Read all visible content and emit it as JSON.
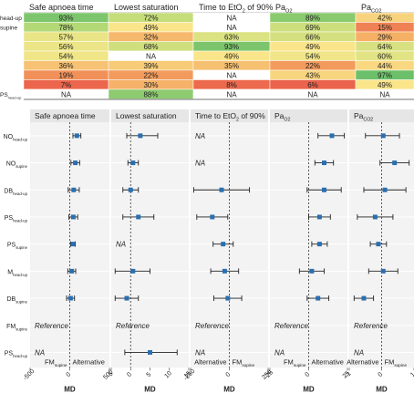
{
  "heatmap": {
    "type": "heatmap",
    "columns": [
      {
        "label": "Safe apnoea time"
      },
      {
        "label": "Lowest saturation"
      },
      {
        "label": "Time to EtO",
        "sub": "2",
        "suffix": " of 90%"
      },
      {
        "label": "Pa",
        "sub": "O2"
      },
      {
        "label": "Pa",
        "sub": "CO2"
      }
    ],
    "rows": [
      {
        "label": "head-up",
        "values": [
          "93%",
          "72%",
          "NA",
          "89%",
          "42%"
        ]
      },
      {
        "label": "supine",
        "values": [
          "78%",
          "49%",
          "NA",
          "69%",
          "15%"
        ]
      },
      {
        "label": "",
        "values": [
          "57%",
          "32%",
          "63%",
          "66%",
          "29%"
        ]
      },
      {
        "label": "",
        "values": [
          "56%",
          "68%",
          "93%",
          "49%",
          "64%"
        ]
      },
      {
        "label": "",
        "values": [
          "54%",
          "NA",
          "49%",
          "54%",
          "60%"
        ]
      },
      {
        "label": "",
        "values": [
          "36%",
          "39%",
          "35%",
          "22%",
          "44%"
        ]
      },
      {
        "label": "",
        "values": [
          "19%",
          "22%",
          "NA",
          "43%",
          "97%"
        ]
      },
      {
        "label": "",
        "values": [
          "7%",
          "30%",
          "8%",
          "6%",
          "49%"
        ]
      },
      {
        "label": "PS",
        "sub": "head-up",
        "values": [
          "NA",
          "88%",
          "NA",
          "NA",
          "NA"
        ]
      }
    ]
  },
  "chart_data": {
    "type": "scatter",
    "description": "forest plot of mean differences",
    "panels": [
      {
        "title": "Safe apnoea time",
        "title_sub": "",
        "title_suffix": "",
        "xlim": [
          -500,
          500
        ],
        "ticks": [
          -500,
          0,
          500
        ],
        "left_label": "FM",
        "left_sub": "supine",
        "right_label": "Alternative",
        "right_sub": ""
      },
      {
        "title": "Lowest saturation",
        "title_sub": "",
        "title_suffix": "",
        "xlim": [
          -5,
          15
        ],
        "ticks": [
          -5,
          0,
          5,
          10,
          15
        ],
        "left_label": "",
        "left_sub": "",
        "right_label": "",
        "right_sub": ""
      },
      {
        "title": "Time to EtO",
        "title_sub": "2",
        "title_suffix": " of 90%",
        "xlim": [
          -250,
          250
        ],
        "ticks": [
          -250,
          0,
          250
        ],
        "left_label": "Alternative",
        "left_sub": "",
        "right_label": "FM",
        "right_sub": "supine"
      },
      {
        "title": "Pa",
        "title_sub": "O2",
        "title_suffix": "",
        "xlim": [
          -25,
          25
        ],
        "ticks": [
          -25,
          0,
          25
        ],
        "left_label": "FM",
        "left_sub": "supine",
        "right_label": "Alternative",
        "right_sub": ""
      },
      {
        "title": "Pa",
        "title_sub": "CO2",
        "title_suffix": "",
        "xlim": [
          -1,
          1
        ],
        "ticks": [
          -1,
          0,
          1
        ],
        "left_label": "Alternative",
        "left_sub": "",
        "right_label": "FM",
        "right_sub": "supine"
      }
    ],
    "rows": [
      {
        "label": "NO",
        "sub": "head-up",
        "cells": [
          {
            "est": 90,
            "lo": 40,
            "hi": 140
          },
          {
            "est": 2.5,
            "lo": -1,
            "hi": 7
          },
          "NA",
          {
            "est": 15,
            "lo": 6,
            "hi": 23
          },
          {
            "est": 0.05,
            "lo": -0.5,
            "hi": 0.55
          }
        ]
      },
      {
        "label": "NO",
        "sub": "supine",
        "cells": [
          {
            "est": 70,
            "lo": 15,
            "hi": 125
          },
          {
            "est": 0.6,
            "lo": -0.7,
            "hi": 2
          },
          "NA",
          {
            "est": 10,
            "lo": 4,
            "hi": 16
          },
          {
            "est": 0.4,
            "lo": -0.05,
            "hi": 0.85
          }
        ]
      },
      {
        "label": "DB",
        "sub": "head-up",
        "cells": [
          {
            "est": 50,
            "lo": -20,
            "hi": 120
          },
          {
            "est": 0,
            "lo": -2,
            "hi": 2
          },
          {
            "est": -50,
            "lo": -230,
            "hi": 130
          },
          {
            "est": 10,
            "lo": -1,
            "hi": 21
          },
          {
            "est": 0.1,
            "lo": -0.55,
            "hi": 0.75
          }
        ]
      },
      {
        "label": "PS",
        "sub": "head-up",
        "cells": [
          {
            "est": 45,
            "lo": -10,
            "hi": 100
          },
          {
            "est": 2,
            "lo": -2,
            "hi": 6
          },
          {
            "est": -110,
            "lo": -210,
            "hi": -10
          },
          {
            "est": 7,
            "lo": 0,
            "hi": 14
          },
          {
            "est": -0.2,
            "lo": -0.75,
            "hi": 0.35
          }
        ]
      },
      {
        "label": "PS",
        "sub": "supine",
        "cells": [
          {
            "est": 40,
            "lo": 10,
            "hi": 70
          },
          "NA",
          {
            "est": -40,
            "lo": -105,
            "hi": 25
          },
          {
            "est": 7,
            "lo": 2,
            "hi": 12
          },
          {
            "est": -0.1,
            "lo": -0.35,
            "hi": 0.15
          }
        ]
      },
      {
        "label": "M",
        "sub": "head-up",
        "cells": [
          {
            "est": 25,
            "lo": -25,
            "hi": 75
          },
          {
            "est": 0.6,
            "lo": -4,
            "hi": 5
          },
          {
            "est": -30,
            "lo": -120,
            "hi": 60
          },
          {
            "est": 2,
            "lo": -6,
            "hi": 10
          },
          {
            "est": 0.05,
            "lo": -0.4,
            "hi": 0.5
          }
        ]
      },
      {
        "label": "DB",
        "sub": "supine",
        "cells": [
          {
            "est": 10,
            "lo": -40,
            "hi": 60
          },
          {
            "est": -1,
            "lo": -4,
            "hi": 2
          },
          {
            "est": -10,
            "lo": -100,
            "hi": 80
          },
          {
            "est": 6,
            "lo": -1,
            "hi": 13
          },
          {
            "est": -0.55,
            "lo": -0.85,
            "hi": -0.25
          }
        ]
      },
      {
        "label": "FM",
        "sub": "supine",
        "cells": [
          "Reference",
          "Reference",
          "Reference",
          "Reference",
          "Reference"
        ]
      },
      {
        "label": "PS",
        "sub": "head-up",
        "cells": [
          "NA",
          {
            "est": 5,
            "lo": -1.5,
            "hi": 12
          },
          "NA",
          "NA",
          "NA"
        ]
      }
    ],
    "xlabel": "MD"
  }
}
